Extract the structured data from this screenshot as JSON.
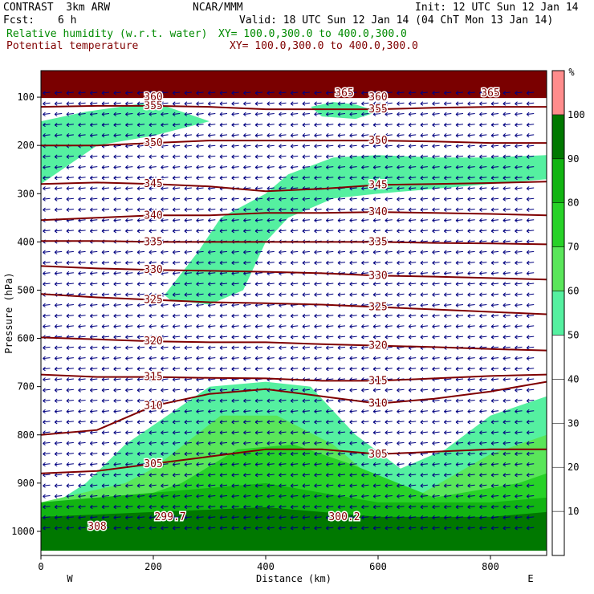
{
  "header": {
    "model": "CONTRAST  3km ARW",
    "center": "NCAR/MMM",
    "init": "Init: 12 UTC Sun 12 Jan 14",
    "fcst_label": "Fcst:",
    "fcst_value": "6 h",
    "valid": "Valid: 18 UTC Sun 12 Jan 14 (04 ChT Mon 13 Jan 14)",
    "field1": "Relative humidity (w.r.t. water)",
    "field1_xy": "XY= 100.0,300.0 to 400.0,300.0",
    "field2": "Potential temperature",
    "field2_xy": "XY= 100.0,300.0 to 400.0,300.0"
  },
  "colors": {
    "rh_green": "#008a00",
    "theta_maroon": "#800000",
    "wind_navy": "#000080"
  },
  "chart_data": {
    "type": "cross-section",
    "xlabel": "Distance (km)",
    "ylabel": "Pressure (hPa)",
    "x_ticks": [
      "0",
      "200",
      "400",
      "600",
      "800"
    ],
    "y_ticks": [
      "100",
      "200",
      "300",
      "400",
      "500",
      "600",
      "700",
      "800",
      "900",
      "1000"
    ],
    "xlim": [
      0,
      900
    ],
    "ylim": [
      1050,
      45
    ],
    "endpoint_labels": {
      "left": "W",
      "right": "E"
    },
    "colorbar": {
      "unit": "%",
      "levels": [
        "10",
        "20",
        "30",
        "40",
        "50",
        "60",
        "70",
        "80",
        "90",
        "100"
      ],
      "colors": [
        "#ffffff",
        "#ffffff",
        "#ffffff",
        "#ffffff",
        "#ffffff",
        "#55f0a0",
        "#5ae65a",
        "#28d228",
        "#12b412",
        "#007800",
        "#ff8c8c"
      ]
    },
    "theta_contours": [
      {
        "label": "305",
        "x": [
          0,
          100,
          200,
          300,
          400,
          500,
          600,
          700,
          800,
          900
        ],
        "p": [
          880,
          875,
          860,
          845,
          830,
          830,
          840,
          835,
          830,
          830
        ]
      },
      {
        "label": "310",
        "x": [
          0,
          100,
          200,
          300,
          400,
          500,
          600,
          700,
          800,
          900
        ],
        "p": [
          800,
          790,
          740,
          715,
          705,
          720,
          735,
          725,
          710,
          690
        ]
      },
      {
        "label": "315",
        "x": [
          0,
          100,
          200,
          300,
          400,
          500,
          600,
          700,
          800,
          900
        ],
        "p": [
          675,
          680,
          680,
          682,
          683,
          688,
          688,
          683,
          678,
          675
        ]
      },
      {
        "label": "320",
        "x": [
          0,
          100,
          200,
          300,
          400,
          500,
          600,
          700,
          800,
          900
        ],
        "p": [
          598,
          602,
          606,
          608,
          608,
          612,
          615,
          618,
          622,
          625
        ]
      },
      {
        "label": "325",
        "x": [
          0,
          100,
          200,
          300,
          400,
          500,
          600,
          700,
          800,
          900
        ],
        "p": [
          508,
          515,
          520,
          525,
          527,
          530,
          535,
          540,
          545,
          550
        ]
      },
      {
        "label": "330",
        "x": [
          0,
          100,
          200,
          300,
          400,
          500,
          600,
          700,
          800,
          900
        ],
        "p": [
          450,
          455,
          458,
          460,
          462,
          465,
          470,
          472,
          475,
          478
        ]
      },
      {
        "label": "335",
        "x": [
          0,
          100,
          200,
          300,
          400,
          500,
          600,
          700,
          800,
          900
        ],
        "p": [
          398,
          398,
          400,
          400,
          400,
          400,
          400,
          402,
          403,
          405
        ]
      },
      {
        "label": "340",
        "x": [
          0,
          100,
          200,
          300,
          400,
          500,
          600,
          700,
          800,
          900
        ],
        "p": [
          355,
          350,
          345,
          345,
          340,
          340,
          338,
          340,
          342,
          345
        ]
      },
      {
        "label": "345",
        "x": [
          0,
          100,
          200,
          300,
          400,
          500,
          600,
          700,
          800,
          900
        ],
        "p": [
          280,
          277,
          280,
          285,
          295,
          290,
          282,
          280,
          278,
          275
        ]
      },
      {
        "label": "350",
        "x": [
          0,
          100,
          200,
          300,
          400,
          500,
          600,
          700,
          800,
          900
        ],
        "p": [
          200,
          200,
          195,
          190,
          190,
          190,
          190,
          192,
          195,
          195
        ]
      },
      {
        "label": "355",
        "x": [
          0,
          100,
          200,
          300,
          400,
          500,
          600,
          700,
          800,
          900
        ],
        "p": [
          120,
          118,
          118,
          120,
          125,
          125,
          125,
          122,
          120,
          120
        ]
      },
      {
        "label": "360",
        "x": [
          0,
          100,
          200,
          300,
          400,
          500,
          600,
          700,
          800,
          900
        ],
        "p": [
          100,
          100,
          100,
          100,
          100,
          100,
          100,
          100,
          100,
          100
        ]
      }
    ],
    "theta_extrema_labels": [
      {
        "text": "308",
        "x": 100,
        "p": 990
      },
      {
        "text": "299.7",
        "x": 230,
        "p": 970
      },
      {
        "text": "300.2",
        "x": 540,
        "p": 970
      },
      {
        "text": "365",
        "x": 540,
        "p": 92
      },
      {
        "text": "365",
        "x": 800,
        "p": 92
      }
    ],
    "rh_regions": [
      {
        "level": "50",
        "x": [
          0,
          80,
          200,
          300,
          200,
          100,
          0
        ],
        "p": [
          150,
          130,
          110,
          150,
          180,
          200,
          280
        ]
      },
      {
        "level": "50",
        "x": [
          480,
          520,
          560,
          600,
          560,
          500
        ],
        "p": [
          120,
          110,
          115,
          130,
          145,
          140
        ]
      },
      {
        "level": "50",
        "x": [
          220,
          280,
          320,
          400,
          440,
          520,
          600,
          700,
          800,
          900,
          900,
          800,
          700,
          600,
          520,
          440,
          400,
          360,
          300,
          230
        ],
        "p": [
          510,
          420,
          350,
          300,
          260,
          225,
          220,
          225,
          225,
          220,
          270,
          280,
          290,
          300,
          310,
          350,
          400,
          500,
          530,
          520
        ]
      },
      {
        "level": "50",
        "x": [
          150,
          300,
          400,
          480,
          560,
          640,
          720,
          800,
          900,
          900,
          0,
          0,
          80
        ],
        "p": [
          820,
          700,
          690,
          700,
          800,
          870,
          830,
          760,
          720,
          1040,
          1040,
          960,
          900
        ]
      },
      {
        "level": "60",
        "x": [
          200,
          320,
          420,
          520,
          600,
          680,
          800,
          900,
          900,
          0,
          0,
          150
        ],
        "p": [
          870,
          760,
          760,
          820,
          900,
          920,
          840,
          800,
          1040,
          1040,
          940,
          900
        ]
      },
      {
        "level": "70",
        "x": [
          250,
          350,
          450,
          550,
          700,
          850,
          900,
          900,
          0,
          0,
          200
        ],
        "p": [
          900,
          830,
          820,
          860,
          930,
          900,
          880,
          1040,
          1040,
          960,
          920
        ]
      },
      {
        "level": "80",
        "x": [
          0,
          200,
          400,
          600,
          800,
          900,
          900,
          0
        ],
        "p": [
          940,
          920,
          900,
          940,
          940,
          930,
          1040,
          1040
        ]
      },
      {
        "level": "90",
        "x": [
          0,
          200,
          400,
          600,
          800,
          900,
          900,
          0
        ],
        "p": [
          970,
          960,
          950,
          970,
          970,
          960,
          1040,
          1040
        ]
      },
      {
        "level": "100",
        "x": [
          0,
          900,
          900,
          0
        ],
        "p": [
          45,
          45,
          100,
          100
        ]
      }
    ]
  }
}
